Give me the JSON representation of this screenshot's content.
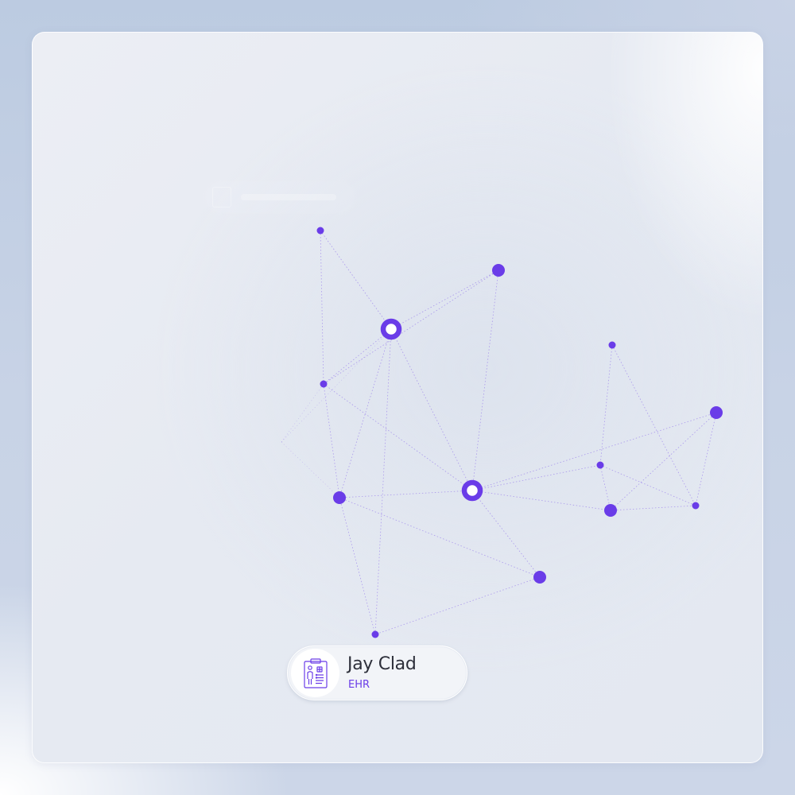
{
  "colors": {
    "accent": "#6a3ce8",
    "text": "#2d2f3a"
  },
  "profile_chip": {
    "name": "Jay Clad",
    "subtitle": "EHR",
    "icon": "medical-record-icon"
  },
  "network": {
    "nodes": [
      {
        "id": "n1",
        "kind": "dot",
        "size": "small"
      },
      {
        "id": "n2",
        "kind": "dot",
        "size": "medium"
      },
      {
        "id": "n3",
        "kind": "ring",
        "size": "large"
      },
      {
        "id": "n4",
        "kind": "dot",
        "size": "small"
      },
      {
        "id": "n5",
        "kind": "dot",
        "size": "medium"
      },
      {
        "id": "n6",
        "kind": "ring",
        "size": "large"
      },
      {
        "id": "n7",
        "kind": "dot",
        "size": "small"
      },
      {
        "id": "n8",
        "kind": "dot",
        "size": "medium"
      },
      {
        "id": "n9",
        "kind": "dot",
        "size": "small"
      },
      {
        "id": "n10",
        "kind": "dot",
        "size": "medium"
      },
      {
        "id": "n11",
        "kind": "dot",
        "size": "small"
      },
      {
        "id": "n12",
        "kind": "dot",
        "size": "medium"
      },
      {
        "id": "n13",
        "kind": "dot",
        "size": "small"
      }
    ],
    "edges": [
      [
        "n1",
        "n3"
      ],
      [
        "n1",
        "n4"
      ],
      [
        "n2",
        "n3"
      ],
      [
        "n2",
        "n6"
      ],
      [
        "n2",
        "n4"
      ],
      [
        "n3",
        "n6"
      ],
      [
        "n3",
        "n5"
      ],
      [
        "n3",
        "n4"
      ],
      [
        "n4",
        "n6"
      ],
      [
        "n4",
        "n5"
      ],
      [
        "n5",
        "n6"
      ],
      [
        "n6",
        "n12"
      ],
      [
        "n6",
        "n8"
      ],
      [
        "n6",
        "n10"
      ],
      [
        "n6",
        "n9"
      ],
      [
        "n7",
        "n9"
      ],
      [
        "n7",
        "n11"
      ],
      [
        "n8",
        "n10"
      ],
      [
        "n8",
        "n11"
      ],
      [
        "n9",
        "n11"
      ],
      [
        "n9",
        "n10"
      ],
      [
        "n10",
        "n11"
      ],
      [
        "n12",
        "n13"
      ],
      [
        "n13",
        "n5"
      ],
      [
        "n13",
        "n3"
      ],
      [
        "n5",
        "n12"
      ]
    ]
  }
}
